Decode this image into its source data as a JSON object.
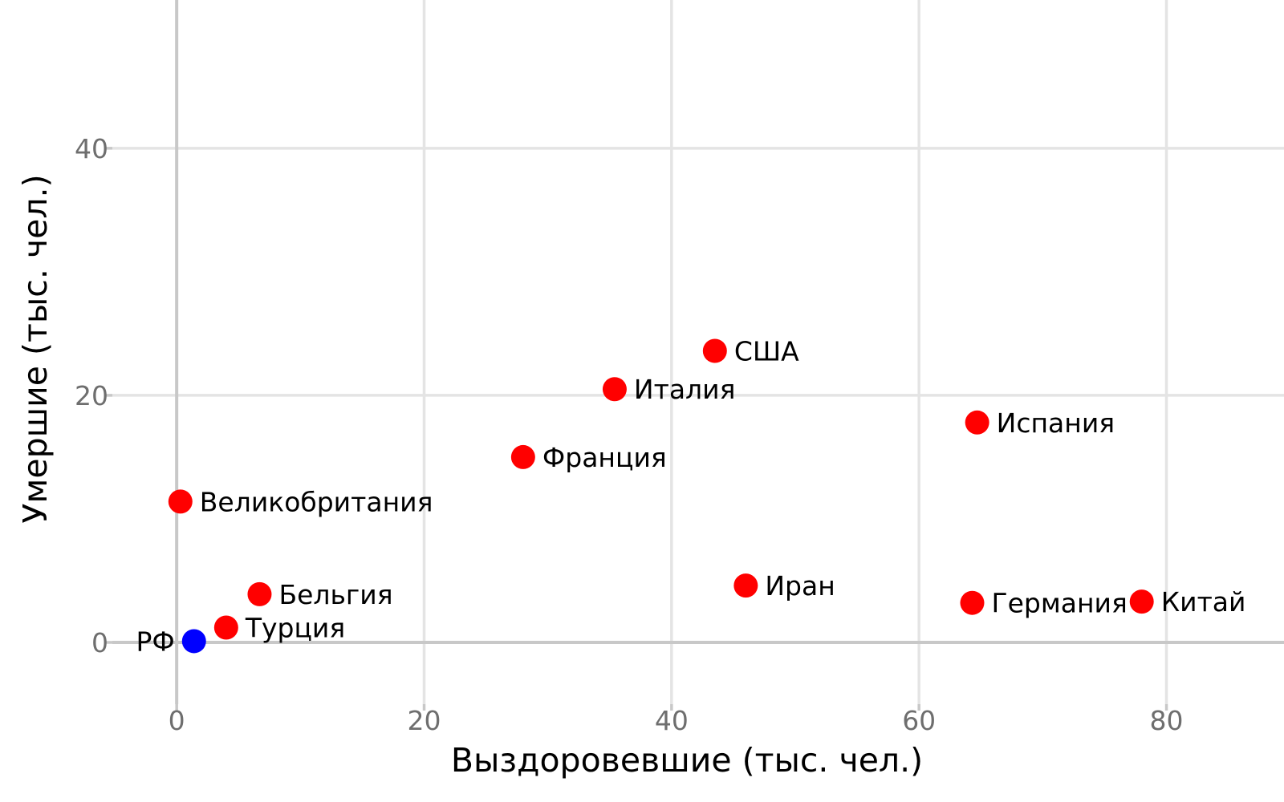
{
  "chart_data": {
    "type": "scatter",
    "title": "",
    "xlabel": "Выздоровевшие (тыс. чел.)",
    "ylabel": "Умершие (тыс. чел.)",
    "xlim": [
      -5.2,
      89.5
    ],
    "ylim": [
      -5.0,
      52.0
    ],
    "xticks": [
      0,
      20,
      40,
      60,
      80
    ],
    "yticks": [
      0,
      20,
      40
    ],
    "grid": true,
    "colors": {
      "default": "#ff0000",
      "highlight": "#0000ff",
      "grid": "#e4e4e4",
      "axis": "#c8c8c8"
    },
    "points": [
      {
        "label": "США",
        "x": 43.5,
        "y": 23.6,
        "color": "#ff0000",
        "label_side": "right"
      },
      {
        "label": "Италия",
        "x": 35.4,
        "y": 20.5,
        "color": "#ff0000",
        "label_side": "right"
      },
      {
        "label": "Испания",
        "x": 64.7,
        "y": 17.8,
        "color": "#ff0000",
        "label_side": "right"
      },
      {
        "label": "Франция",
        "x": 28.0,
        "y": 15.0,
        "color": "#ff0000",
        "label_side": "right"
      },
      {
        "label": "Великобритания",
        "x": 0.3,
        "y": 11.4,
        "color": "#ff0000",
        "label_side": "right"
      },
      {
        "label": "Бельгия",
        "x": 6.7,
        "y": 3.9,
        "color": "#ff0000",
        "label_side": "right"
      },
      {
        "label": "Турция",
        "x": 4.0,
        "y": 1.2,
        "color": "#ff0000",
        "label_side": "right"
      },
      {
        "label": "Иран",
        "x": 46.0,
        "y": 4.6,
        "color": "#ff0000",
        "label_side": "right"
      },
      {
        "label": "Германия",
        "x": 64.3,
        "y": 3.2,
        "color": "#ff0000",
        "label_side": "right"
      },
      {
        "label": "Китай",
        "x": 78.0,
        "y": 3.3,
        "color": "#ff0000",
        "label_side": "right"
      },
      {
        "label": "РФ",
        "x": 1.4,
        "y": 0.1,
        "color": "#0000ff",
        "label_side": "left"
      }
    ]
  }
}
